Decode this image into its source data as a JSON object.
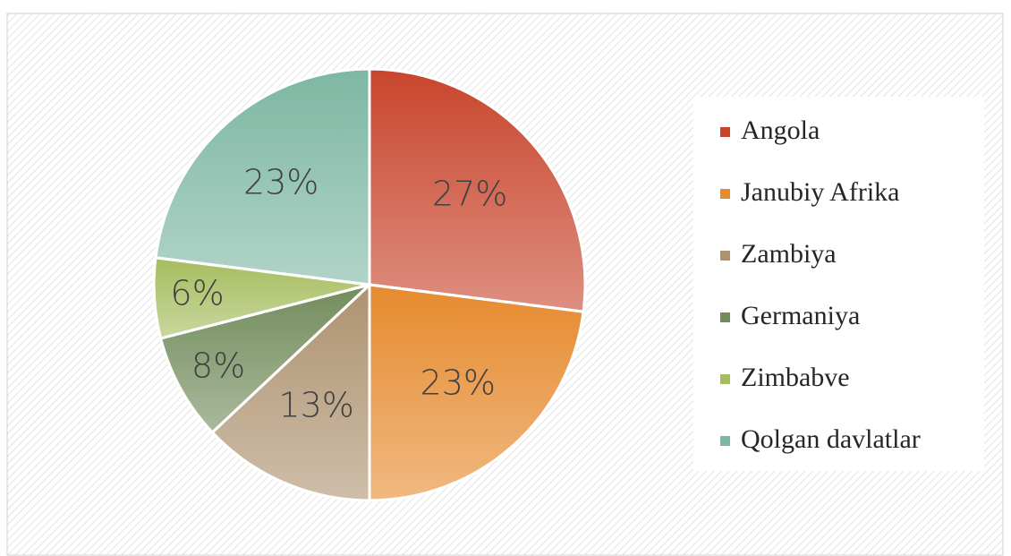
{
  "chart_data": {
    "type": "pie",
    "categories": [
      "Angola",
      "Janubiy Afrika",
      "Zambiya",
      "Germaniya",
      "Zimbabve",
      "Qolgan davlatlar"
    ],
    "values": [
      27,
      23,
      13,
      8,
      6,
      23
    ],
    "value_labels": [
      "27%",
      "23%",
      "13%",
      "8%",
      "6%",
      "23%"
    ],
    "colors": [
      "#c8452c",
      "#e68a2e",
      "#ae9270",
      "#728c5c",
      "#a6bd5e",
      "#7db7a2"
    ],
    "legend": "right"
  }
}
